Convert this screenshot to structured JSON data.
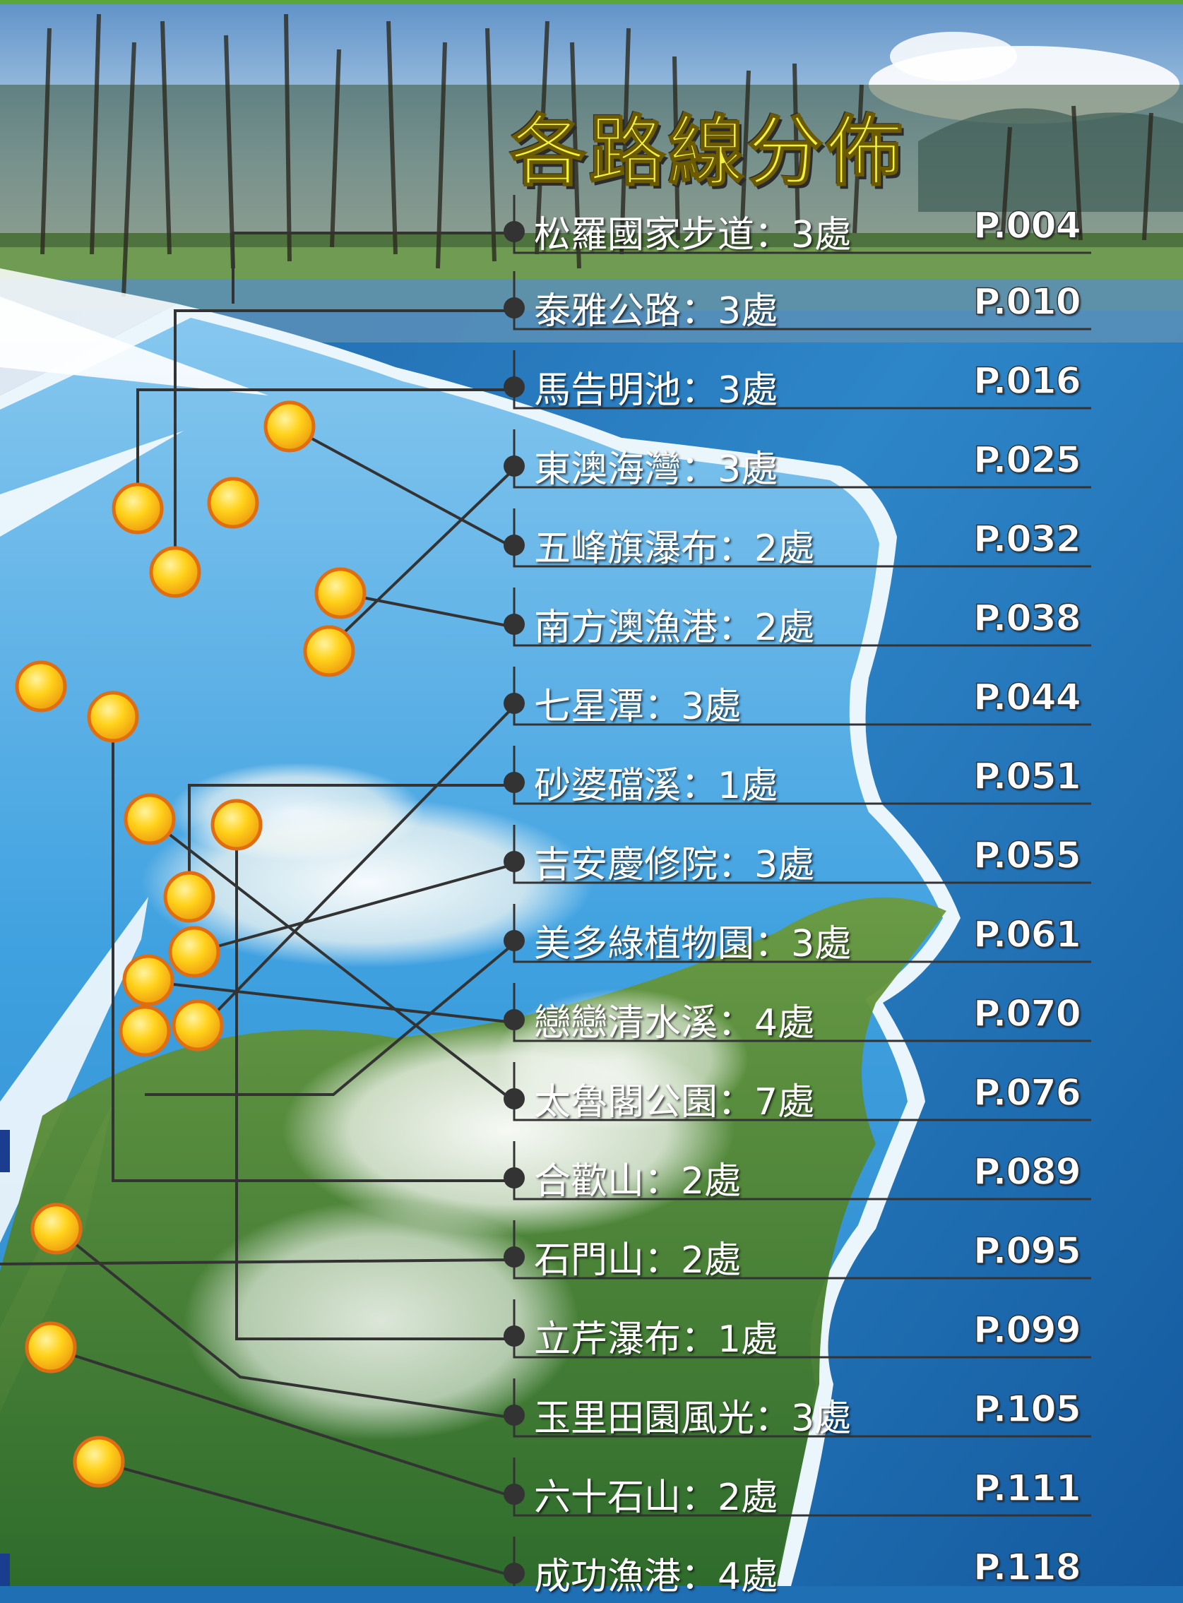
{
  "title": "各路線分佈",
  "routes": [
    {
      "name": "松羅國家步道：3處",
      "page": "P.004"
    },
    {
      "name": "泰雅公路：3處",
      "page": "P.010"
    },
    {
      "name": "馬告明池：3處",
      "page": "P.016"
    },
    {
      "name": "東澳海灣：3處",
      "page": "P.025"
    },
    {
      "name": "五峰旗瀑布：2處",
      "page": "P.032"
    },
    {
      "name": "南方澳漁港：2處",
      "page": "P.038"
    },
    {
      "name": "七星潭：3處",
      "page": "P.044"
    },
    {
      "name": "砂婆礑溪：1處",
      "page": "P.051"
    },
    {
      "name": "吉安慶修院：3處",
      "page": "P.055"
    },
    {
      "name": "美多綠植物園：3處",
      "page": "P.061"
    },
    {
      "name": "戀戀清水溪：4處",
      "page": "P.070"
    },
    {
      "name": "太魯閣公園：7處",
      "page": "P.076"
    },
    {
      "name": "合歡山：2處",
      "page": "P.089"
    },
    {
      "name": "石門山：2處",
      "page": "P.095"
    },
    {
      "name": "立芹瀑布：1處",
      "page": "P.099"
    },
    {
      "name": "玉里田園風光：3處",
      "page": "P.105"
    },
    {
      "name": "六十石山：2處",
      "page": "P.111"
    },
    {
      "name": "成功漁港：4處",
      "page": "P.118"
    }
  ],
  "colors": {
    "marker_fill": "#ffd21a",
    "marker_ring": "#e06d10",
    "leader_line": "#333333",
    "title": "#f3f23a"
  }
}
